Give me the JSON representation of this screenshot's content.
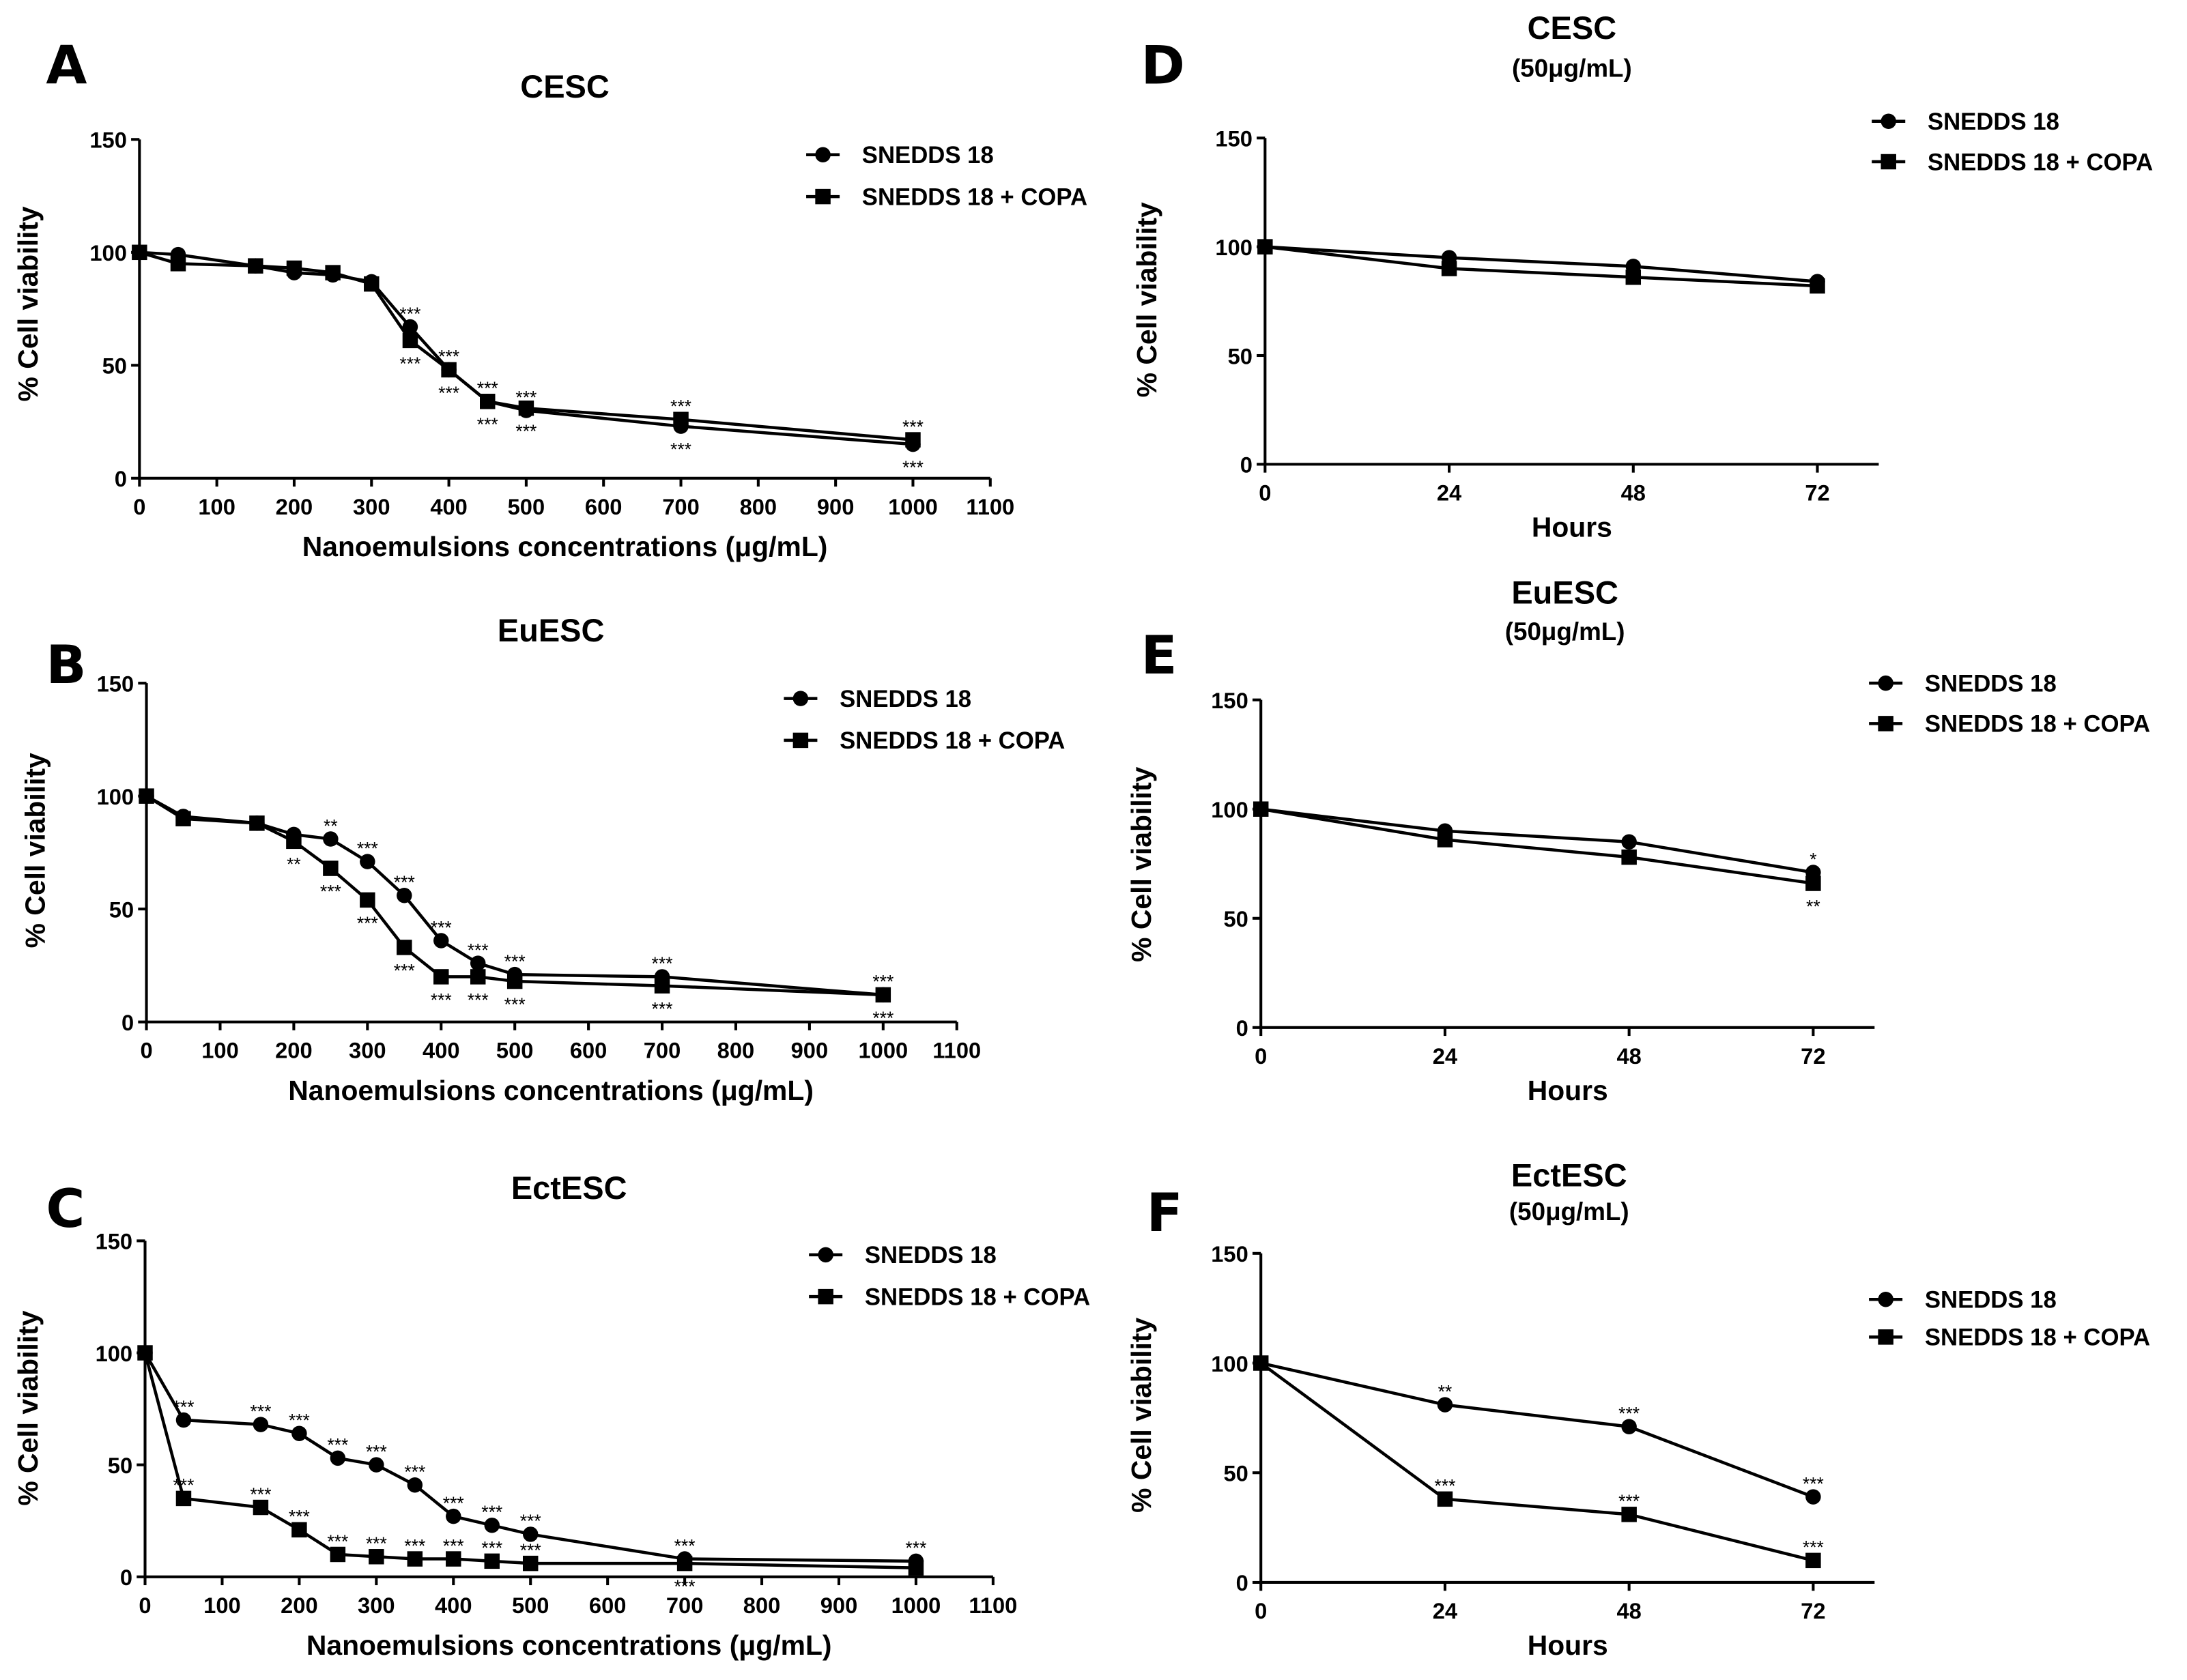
{
  "chart_data": [
    {
      "panel": "A",
      "type": "line",
      "title": "CESC",
      "xlabel": "Nanoemulsions concentrations (μg/mL)",
      "ylabel": "% Cell viability",
      "xlim": [
        0,
        1100
      ],
      "ylim": [
        0,
        150
      ],
      "xticks": [
        0,
        100,
        200,
        300,
        400,
        500,
        600,
        700,
        800,
        900,
        1000,
        1100
      ],
      "yticks": [
        0,
        50,
        100,
        150
      ],
      "grid": false,
      "legend_position": "top-right",
      "x": [
        0,
        50,
        150,
        200,
        250,
        300,
        350,
        400,
        450,
        500,
        700,
        1000
      ],
      "series": [
        {
          "name": "SNEDDS 18",
          "marker": "circle",
          "values": [
            100,
            99,
            94,
            91,
            90,
            87,
            67,
            48,
            34,
            30,
            23,
            15
          ],
          "sig": [
            {
              "x": 350,
              "text": "***"
            },
            {
              "x": 400,
              "text": "***"
            },
            {
              "x": 450,
              "text": "***"
            },
            {
              "x": 500,
              "text": "***"
            },
            {
              "x": 700,
              "text": "***"
            },
            {
              "x": 1000,
              "text": "***"
            }
          ]
        },
        {
          "name": "SNEDDS 18 + COPA",
          "marker": "square",
          "values": [
            100,
            95,
            94,
            93,
            91,
            86,
            61,
            48,
            34,
            31,
            26,
            17
          ],
          "sig": [
            {
              "x": 350,
              "text": "***"
            },
            {
              "x": 400,
              "text": "***"
            },
            {
              "x": 450,
              "text": "***"
            },
            {
              "x": 500,
              "text": "***"
            },
            {
              "x": 700,
              "text": "***"
            },
            {
              "x": 1000,
              "text": "***"
            }
          ]
        }
      ]
    },
    {
      "panel": "B",
      "type": "line",
      "title": "EuESC",
      "xlabel": "Nanoemulsions concentrations (μg/mL)",
      "ylabel": "% Cell viability",
      "xlim": [
        0,
        1100
      ],
      "ylim": [
        0,
        150
      ],
      "xticks": [
        0,
        100,
        200,
        300,
        400,
        500,
        600,
        700,
        800,
        900,
        1000,
        1100
      ],
      "yticks": [
        0,
        50,
        100,
        150
      ],
      "grid": false,
      "legend_position": "top-right",
      "x": [
        0,
        50,
        150,
        200,
        250,
        300,
        350,
        400,
        450,
        500,
        700,
        1000
      ],
      "series": [
        {
          "name": "SNEDDS 18",
          "marker": "circle",
          "values": [
            100,
            91,
            88,
            83,
            81,
            71,
            56,
            36,
            26,
            21,
            20,
            12
          ],
          "sig": [
            {
              "x": 250,
              "text": "**"
            },
            {
              "x": 300,
              "text": "***"
            },
            {
              "x": 350,
              "text": "***"
            },
            {
              "x": 400,
              "text": "***"
            },
            {
              "x": 450,
              "text": "***"
            },
            {
              "x": 500,
              "text": "***"
            },
            {
              "x": 700,
              "text": "***"
            },
            {
              "x": 1000,
              "text": "***"
            }
          ]
        },
        {
          "name": "SNEDDS 18 + COPA",
          "marker": "square",
          "values": [
            100,
            90,
            88,
            80,
            68,
            54,
            33,
            20,
            20,
            18,
            16,
            12
          ],
          "sig": [
            {
              "x": 200,
              "text": "**"
            },
            {
              "x": 250,
              "text": "***"
            },
            {
              "x": 300,
              "text": "***"
            },
            {
              "x": 350,
              "text": "***"
            },
            {
              "x": 400,
              "text": "***"
            },
            {
              "x": 450,
              "text": "***"
            },
            {
              "x": 500,
              "text": "***"
            },
            {
              "x": 700,
              "text": "***"
            },
            {
              "x": 1000,
              "text": "***"
            }
          ]
        }
      ]
    },
    {
      "panel": "C",
      "type": "line",
      "title": "EctESC",
      "xlabel": "Nanoemulsions concentrations (μg/mL)",
      "ylabel": "% Cell viability",
      "xlim": [
        0,
        1100
      ],
      "ylim": [
        0,
        150
      ],
      "xticks": [
        0,
        100,
        200,
        300,
        400,
        500,
        600,
        700,
        800,
        900,
        1000,
        1100
      ],
      "yticks": [
        0,
        50,
        100,
        150
      ],
      "grid": false,
      "legend_position": "top-right",
      "x": [
        0,
        50,
        150,
        200,
        250,
        300,
        350,
        400,
        450,
        500,
        700,
        1000
      ],
      "series": [
        {
          "name": "SNEDDS 18",
          "marker": "circle",
          "values": [
            100,
            70,
            68,
            64,
            53,
            50,
            41,
            27,
            23,
            19,
            8,
            7
          ],
          "sig": [
            {
              "x": 50,
              "text": "***"
            },
            {
              "x": 150,
              "text": "***"
            },
            {
              "x": 200,
              "text": "***"
            },
            {
              "x": 250,
              "text": "***"
            },
            {
              "x": 300,
              "text": "***"
            },
            {
              "x": 350,
              "text": "***"
            },
            {
              "x": 400,
              "text": "***"
            },
            {
              "x": 450,
              "text": "***"
            },
            {
              "x": 500,
              "text": "***"
            },
            {
              "x": 700,
              "text": "***"
            },
            {
              "x": 1000,
              "text": "***"
            }
          ]
        },
        {
          "name": "SNEDDS 18 + COPA",
          "marker": "square",
          "values": [
            100,
            35,
            31,
            21,
            10,
            9,
            8,
            8,
            7,
            6,
            6,
            4
          ],
          "sig": [
            {
              "x": 50,
              "text": "***"
            },
            {
              "x": 150,
              "text": "***"
            },
            {
              "x": 200,
              "text": "***"
            },
            {
              "x": 250,
              "text": "***"
            },
            {
              "x": 300,
              "text": "***"
            },
            {
              "x": 350,
              "text": "***"
            },
            {
              "x": 400,
              "text": "***"
            },
            {
              "x": 450,
              "text": "***"
            },
            {
              "x": 500,
              "text": "***"
            },
            {
              "x": 700,
              "text": "***"
            }
          ]
        }
      ]
    },
    {
      "panel": "D",
      "type": "line",
      "title": "CESC",
      "subtitle": "(50μg/mL)",
      "xlabel": "Hours",
      "ylabel": "% Cell viability",
      "xlim": [
        0,
        80
      ],
      "ylim": [
        0,
        150
      ],
      "xticks": [
        0,
        24,
        48,
        72
      ],
      "yticks": [
        0,
        50,
        100,
        150
      ],
      "grid": false,
      "legend_position": "top-right",
      "x": [
        0,
        24,
        48,
        72
      ],
      "series": [
        {
          "name": "SNEDDS 18",
          "marker": "circle",
          "values": [
            100,
            95,
            91,
            84
          ],
          "sig": []
        },
        {
          "name": "SNEDDS 18 + COPA",
          "marker": "square",
          "values": [
            100,
            90,
            86,
            82
          ],
          "sig": []
        }
      ]
    },
    {
      "panel": "E",
      "type": "line",
      "title": "EuESC",
      "subtitle": "(50μg/mL)",
      "xlabel": "Hours",
      "ylabel": "% Cell viability",
      "xlim": [
        0,
        80
      ],
      "ylim": [
        0,
        150
      ],
      "xticks": [
        0,
        24,
        48,
        72
      ],
      "yticks": [
        0,
        50,
        100,
        150
      ],
      "grid": false,
      "legend_position": "top-right",
      "x": [
        0,
        24,
        48,
        72
      ],
      "series": [
        {
          "name": "SNEDDS 18",
          "marker": "circle",
          "values": [
            100,
            90,
            85,
            71
          ],
          "sig": [
            {
              "x": 72,
              "text": "*"
            }
          ]
        },
        {
          "name": "SNEDDS 18 + COPA",
          "marker": "square",
          "values": [
            100,
            86,
            78,
            66
          ],
          "sig": [
            {
              "x": 72,
              "text": "**"
            }
          ]
        }
      ]
    },
    {
      "panel": "F",
      "type": "line",
      "title": "EctESC",
      "subtitle": "(50μg/mL)",
      "xlabel": "Hours",
      "ylabel": "% Cell viability",
      "xlim": [
        0,
        80
      ],
      "ylim": [
        0,
        150
      ],
      "xticks": [
        0,
        24,
        48,
        72
      ],
      "yticks": [
        0,
        50,
        100,
        150
      ],
      "grid": false,
      "legend_position": "top-right",
      "x": [
        0,
        24,
        48,
        72
      ],
      "series": [
        {
          "name": "SNEDDS 18",
          "marker": "circle",
          "values": [
            100,
            81,
            71,
            39
          ],
          "sig": [
            {
              "x": 24,
              "text": "**"
            },
            {
              "x": 48,
              "text": "***"
            },
            {
              "x": 72,
              "text": "***"
            }
          ]
        },
        {
          "name": "SNEDDS 18 + COPA",
          "marker": "square",
          "values": [
            100,
            38,
            31,
            10
          ],
          "sig": [
            {
              "x": 24,
              "text": "***"
            },
            {
              "x": 48,
              "text": "***"
            },
            {
              "x": 72,
              "text": "***"
            }
          ]
        }
      ]
    }
  ]
}
